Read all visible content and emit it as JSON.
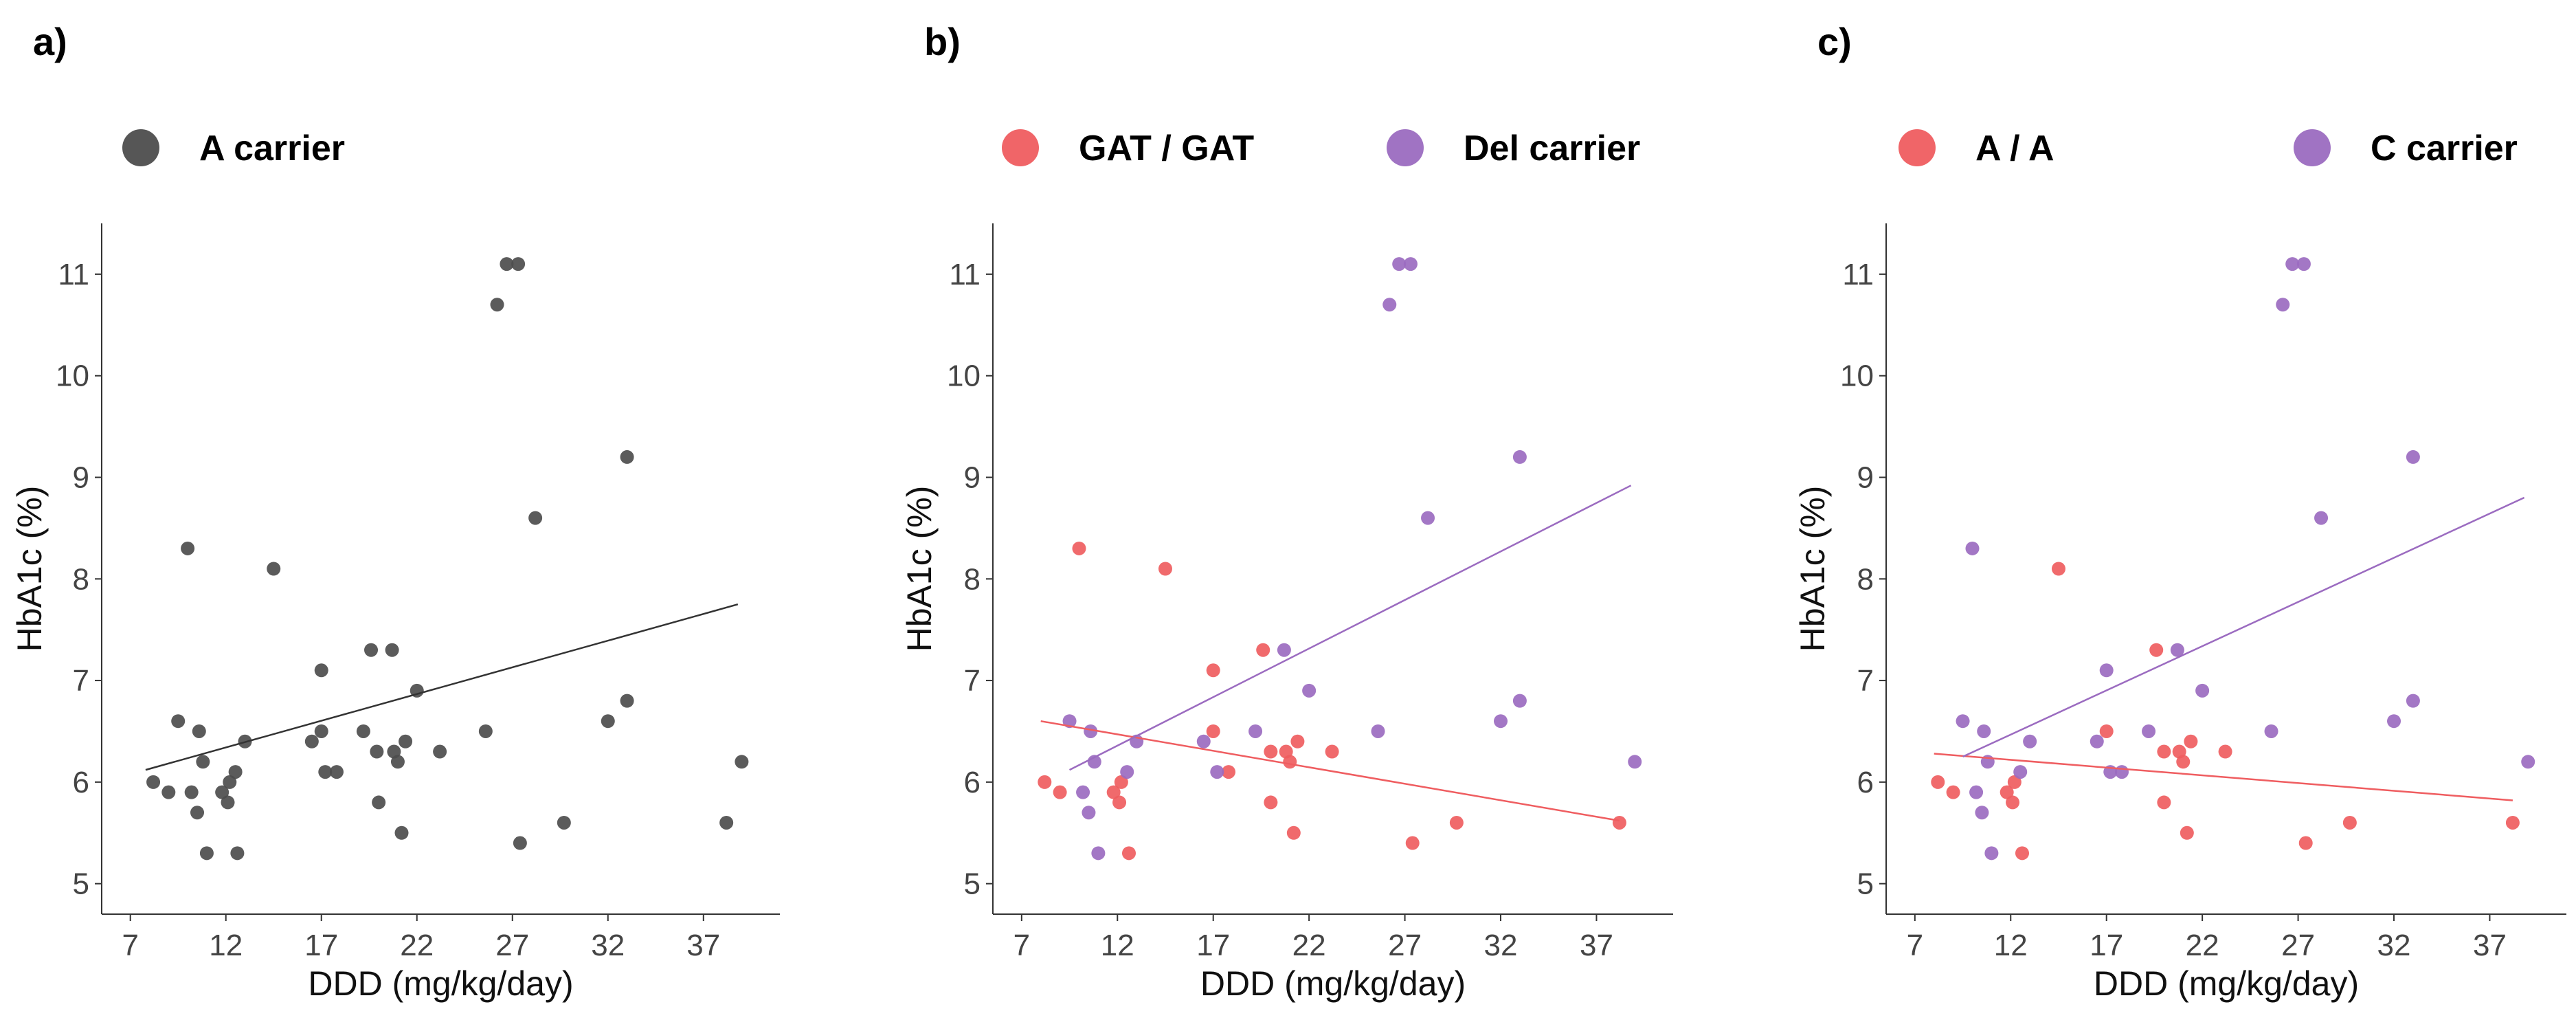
{
  "chart_data": [
    {
      "panel_label": "a)",
      "type": "scatter",
      "xlabel": "DDD (mg/kg/day)",
      "ylabel": "HbA1c (%)",
      "x_ticks": [
        7,
        12,
        17,
        22,
        27,
        32,
        37
      ],
      "y_ticks": [
        5,
        6,
        7,
        8,
        9,
        10,
        11
      ],
      "xlim": [
        5.5,
        41
      ],
      "ylim": [
        4.7,
        11.5
      ],
      "legend": [
        {
          "label": "A carrier",
          "color": "#4d4d4d"
        }
      ],
      "series": [
        {
          "name": "A carrier",
          "color": "#4d4d4d",
          "points": [
            [
              8.2,
              6.0
            ],
            [
              9.0,
              5.9
            ],
            [
              9.5,
              6.6
            ],
            [
              10.0,
              8.3
            ],
            [
              10.2,
              5.9
            ],
            [
              10.5,
              5.7
            ],
            [
              10.6,
              6.5
            ],
            [
              10.8,
              6.2
            ],
            [
              11.0,
              5.3
            ],
            [
              11.8,
              5.9
            ],
            [
              12.1,
              5.8
            ],
            [
              12.2,
              6.0
            ],
            [
              12.5,
              6.1
            ],
            [
              12.6,
              5.3
            ],
            [
              13.0,
              6.4
            ],
            [
              14.5,
              8.1
            ],
            [
              16.5,
              6.4
            ],
            [
              17.0,
              6.5
            ],
            [
              17.0,
              7.1
            ],
            [
              17.2,
              6.1
            ],
            [
              17.8,
              6.1
            ],
            [
              19.2,
              6.5
            ],
            [
              19.6,
              7.3
            ],
            [
              19.9,
              6.3
            ],
            [
              20.0,
              5.8
            ],
            [
              20.7,
              7.3
            ],
            [
              20.8,
              6.3
            ],
            [
              21.0,
              6.2
            ],
            [
              21.2,
              5.5
            ],
            [
              21.4,
              6.4
            ],
            [
              22.0,
              6.9
            ],
            [
              23.2,
              6.3
            ],
            [
              25.6,
              6.5
            ],
            [
              26.2,
              10.7
            ],
            [
              26.7,
              11.1
            ],
            [
              27.3,
              11.1
            ],
            [
              27.4,
              5.4
            ],
            [
              28.2,
              8.6
            ],
            [
              29.7,
              5.6
            ],
            [
              32.0,
              6.6
            ],
            [
              33.0,
              9.2
            ],
            [
              33.0,
              6.8
            ],
            [
              38.2,
              5.6
            ],
            [
              39.0,
              6.2
            ]
          ]
        }
      ],
      "trend_lines": [
        {
          "color": "#333333",
          "x": [
            7.8,
            38.8
          ],
          "y": [
            6.12,
            7.75
          ]
        }
      ]
    },
    {
      "panel_label": "b)",
      "type": "scatter",
      "xlabel": "DDD (mg/kg/day)",
      "ylabel": "HbA1c (%)",
      "x_ticks": [
        7,
        12,
        17,
        22,
        27,
        32,
        37
      ],
      "y_ticks": [
        5,
        6,
        7,
        8,
        9,
        10,
        11
      ],
      "xlim": [
        5.5,
        41
      ],
      "ylim": [
        4.7,
        11.5
      ],
      "legend": [
        {
          "label": "GAT / GAT",
          "color": "#ef5d60"
        },
        {
          "label": "Del carrier",
          "color": "#9b6bc0"
        }
      ],
      "series": [
        {
          "name": "GAT / GAT",
          "color": "#ef5d60",
          "points": [
            [
              8.2,
              6.0
            ],
            [
              9.0,
              5.9
            ],
            [
              10.0,
              8.3
            ],
            [
              11.8,
              5.9
            ],
            [
              12.1,
              5.8
            ],
            [
              12.2,
              6.0
            ],
            [
              12.6,
              5.3
            ],
            [
              14.5,
              8.1
            ],
            [
              17.0,
              6.5
            ],
            [
              17.0,
              7.1
            ],
            [
              17.8,
              6.1
            ],
            [
              19.6,
              7.3
            ],
            [
              20.0,
              6.3
            ],
            [
              20.0,
              5.8
            ],
            [
              20.8,
              6.3
            ],
            [
              21.0,
              6.2
            ],
            [
              21.2,
              5.5
            ],
            [
              21.4,
              6.4
            ],
            [
              23.2,
              6.3
            ],
            [
              27.4,
              5.4
            ],
            [
              29.7,
              5.6
            ],
            [
              38.2,
              5.6
            ]
          ]
        },
        {
          "name": "Del carrier",
          "color": "#9b6bc0",
          "points": [
            [
              9.5,
              6.6
            ],
            [
              10.2,
              5.9
            ],
            [
              10.5,
              5.7
            ],
            [
              10.6,
              6.5
            ],
            [
              10.8,
              6.2
            ],
            [
              11.0,
              5.3
            ],
            [
              12.5,
              6.1
            ],
            [
              13.0,
              6.4
            ],
            [
              16.5,
              6.4
            ],
            [
              17.2,
              6.1
            ],
            [
              19.2,
              6.5
            ],
            [
              20.7,
              7.3
            ],
            [
              22.0,
              6.9
            ],
            [
              25.6,
              6.5
            ],
            [
              26.2,
              10.7
            ],
            [
              26.7,
              11.1
            ],
            [
              27.3,
              11.1
            ],
            [
              28.2,
              8.6
            ],
            [
              32.0,
              6.6
            ],
            [
              33.0,
              9.2
            ],
            [
              33.0,
              6.8
            ],
            [
              39.0,
              6.2
            ]
          ]
        }
      ],
      "trend_lines": [
        {
          "color": "#ef5d60",
          "x": [
            8.0,
            38.2
          ],
          "y": [
            6.6,
            5.62
          ]
        },
        {
          "color": "#9b6bc0",
          "x": [
            9.5,
            38.8
          ],
          "y": [
            6.12,
            8.92
          ]
        }
      ]
    },
    {
      "panel_label": "c)",
      "type": "scatter",
      "xlabel": "DDD (mg/kg/day)",
      "ylabel": "HbA1c (%)",
      "x_ticks": [
        7,
        12,
        17,
        22,
        27,
        32,
        37
      ],
      "y_ticks": [
        5,
        6,
        7,
        8,
        9,
        10,
        11
      ],
      "xlim": [
        5.5,
        41
      ],
      "ylim": [
        4.7,
        11.5
      ],
      "legend": [
        {
          "label": "A / A",
          "color": "#ef5d60"
        },
        {
          "label": "C carrier",
          "color": "#9b6bc0"
        }
      ],
      "series": [
        {
          "name": "A / A",
          "color": "#ef5d60",
          "points": [
            [
              8.2,
              6.0
            ],
            [
              9.0,
              5.9
            ],
            [
              11.8,
              5.9
            ],
            [
              12.1,
              5.8
            ],
            [
              12.2,
              6.0
            ],
            [
              12.6,
              5.3
            ],
            [
              14.5,
              8.1
            ],
            [
              17.0,
              6.5
            ],
            [
              19.6,
              7.3
            ],
            [
              20.0,
              6.3
            ],
            [
              20.0,
              5.8
            ],
            [
              20.8,
              6.3
            ],
            [
              21.0,
              6.2
            ],
            [
              21.2,
              5.5
            ],
            [
              21.4,
              6.4
            ],
            [
              23.2,
              6.3
            ],
            [
              27.4,
              5.4
            ],
            [
              29.7,
              5.6
            ],
            [
              38.2,
              5.6
            ]
          ]
        },
        {
          "name": "C carrier",
          "color": "#9b6bc0",
          "points": [
            [
              9.5,
              6.6
            ],
            [
              10.0,
              8.3
            ],
            [
              10.2,
              5.9
            ],
            [
              10.5,
              5.7
            ],
            [
              10.6,
              6.5
            ],
            [
              10.8,
              6.2
            ],
            [
              11.0,
              5.3
            ],
            [
              12.5,
              6.1
            ],
            [
              13.0,
              6.4
            ],
            [
              16.5,
              6.4
            ],
            [
              17.0,
              7.1
            ],
            [
              17.2,
              6.1
            ],
            [
              17.8,
              6.1
            ],
            [
              19.2,
              6.5
            ],
            [
              20.7,
              7.3
            ],
            [
              22.0,
              6.9
            ],
            [
              25.6,
              6.5
            ],
            [
              26.2,
              10.7
            ],
            [
              26.7,
              11.1
            ],
            [
              27.3,
              11.1
            ],
            [
              28.2,
              8.6
            ],
            [
              32.0,
              6.6
            ],
            [
              33.0,
              9.2
            ],
            [
              33.0,
              6.8
            ],
            [
              39.0,
              6.2
            ]
          ]
        }
      ],
      "trend_lines": [
        {
          "color": "#ef5d60",
          "x": [
            8.0,
            38.2
          ],
          "y": [
            6.28,
            5.82
          ]
        },
        {
          "color": "#9b6bc0",
          "x": [
            9.5,
            38.8
          ],
          "y": [
            6.25,
            8.8
          ]
        }
      ]
    }
  ]
}
